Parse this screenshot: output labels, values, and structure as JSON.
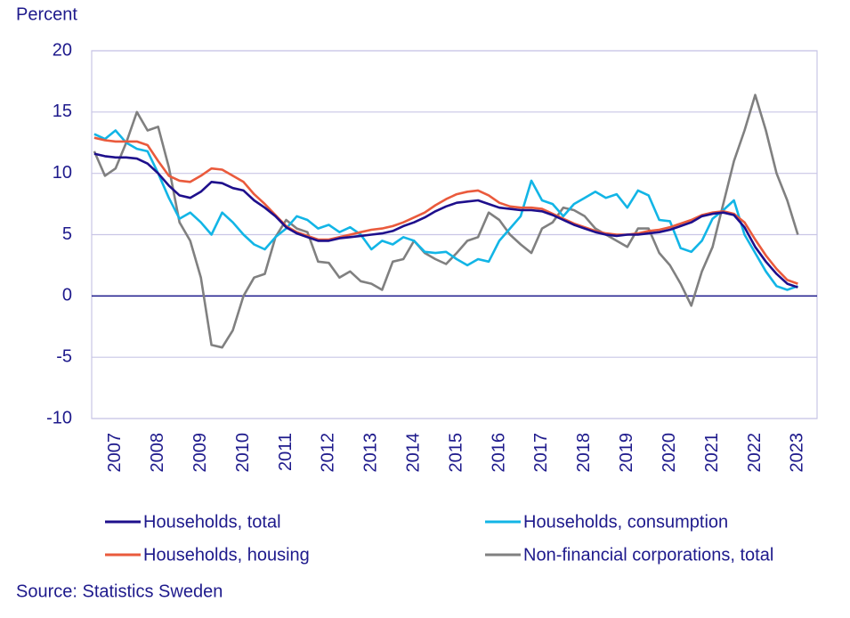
{
  "chart_data": {
    "type": "line",
    "y_label": "Percent",
    "source": "Source: Statistics Sweden",
    "x": [
      2007,
      2007.25,
      2007.5,
      2007.75,
      2008,
      2008.25,
      2008.5,
      2008.75,
      2009,
      2009.25,
      2009.5,
      2009.75,
      2010,
      2010.25,
      2010.5,
      2010.75,
      2011,
      2011.25,
      2011.5,
      2011.75,
      2012,
      2012.25,
      2012.5,
      2012.75,
      2013,
      2013.25,
      2013.5,
      2013.75,
      2014,
      2014.25,
      2014.5,
      2014.75,
      2015,
      2015.25,
      2015.5,
      2015.75,
      2016,
      2016.25,
      2016.5,
      2016.75,
      2017,
      2017.25,
      2017.5,
      2017.75,
      2018,
      2018.25,
      2018.5,
      2018.75,
      2019,
      2019.25,
      2019.5,
      2019.75,
      2020,
      2020.25,
      2020.5,
      2020.75,
      2021,
      2021.25,
      2021.5,
      2021.75,
      2022,
      2022.25,
      2022.5,
      2022.75,
      2023,
      2023.25,
      2023.5
    ],
    "xlim": [
      2006.94,
      2023.95
    ],
    "xticks": [
      {
        "value": 2007.5,
        "label": "2007"
      },
      {
        "value": 2008.5,
        "label": "2008"
      },
      {
        "value": 2009.5,
        "label": "2009"
      },
      {
        "value": 2010.5,
        "label": "2010"
      },
      {
        "value": 2011.5,
        "label": "2011"
      },
      {
        "value": 2012.5,
        "label": "2012"
      },
      {
        "value": 2013.5,
        "label": "2013"
      },
      {
        "value": 2014.5,
        "label": "2014"
      },
      {
        "value": 2015.5,
        "label": "2015"
      },
      {
        "value": 2016.5,
        "label": "2016"
      },
      {
        "value": 2017.5,
        "label": "2017"
      },
      {
        "value": 2018.5,
        "label": "2018"
      },
      {
        "value": 2019.5,
        "label": "2019"
      },
      {
        "value": 2020.5,
        "label": "2020"
      },
      {
        "value": 2021.5,
        "label": "2021"
      },
      {
        "value": 2022.5,
        "label": "2022"
      },
      {
        "value": 2023.5,
        "label": "2023"
      }
    ],
    "ylim": [
      -10,
      20
    ],
    "yticks": [
      -10,
      -5,
      0,
      5,
      10,
      15,
      20
    ],
    "grid": true,
    "series": [
      {
        "name": "Households, total",
        "color": "#1e0f8c",
        "values": [
          11.6,
          11.4,
          11.3,
          11.3,
          11.2,
          10.8,
          10.0,
          9.0,
          8.2,
          8.0,
          8.5,
          9.3,
          9.2,
          8.8,
          8.6,
          7.8,
          7.2,
          6.5,
          5.6,
          5.1,
          4.8,
          4.5,
          4.5,
          4.7,
          4.8,
          4.9,
          5.0,
          5.1,
          5.3,
          5.7,
          6.0,
          6.4,
          6.9,
          7.3,
          7.6,
          7.7,
          7.8,
          7.5,
          7.2,
          7.1,
          7.0,
          7.0,
          6.9,
          6.6,
          6.2,
          5.8,
          5.5,
          5.2,
          5.0,
          4.9,
          5.0,
          5.0,
          5.1,
          5.2,
          5.4,
          5.7,
          6.0,
          6.5,
          6.7,
          6.8,
          6.6,
          5.6,
          4.0,
          2.8,
          1.8,
          1.0,
          0.7
        ]
      },
      {
        "name": "Households, consumption",
        "color": "#12b5e6",
        "values": [
          13.2,
          12.8,
          13.5,
          12.5,
          12.0,
          11.8,
          10.0,
          8.0,
          6.3,
          6.8,
          6.0,
          5.0,
          6.8,
          6.0,
          5.0,
          4.2,
          3.8,
          4.8,
          5.5,
          6.5,
          6.2,
          5.5,
          5.8,
          5.2,
          5.6,
          5.0,
          3.8,
          4.5,
          4.2,
          4.8,
          4.5,
          3.6,
          3.5,
          3.6,
          3.0,
          2.5,
          3.0,
          2.8,
          4.5,
          5.5,
          6.5,
          9.4,
          7.8,
          7.5,
          6.5,
          7.5,
          8.0,
          8.5,
          8.0,
          8.3,
          7.2,
          8.6,
          8.2,
          6.2,
          6.1,
          3.9,
          3.6,
          4.5,
          6.3,
          7.0,
          7.8,
          5.0,
          3.5,
          2.0,
          0.8,
          0.5,
          0.8
        ]
      },
      {
        "name": "Households, housing",
        "color": "#ea5a3c",
        "values": [
          12.9,
          12.7,
          12.6,
          12.6,
          12.6,
          12.3,
          11.0,
          9.8,
          9.4,
          9.3,
          9.8,
          10.4,
          10.3,
          9.8,
          9.3,
          8.3,
          7.5,
          6.6,
          5.7,
          5.2,
          4.9,
          4.6,
          4.6,
          4.8,
          5.0,
          5.2,
          5.4,
          5.5,
          5.7,
          6.0,
          6.4,
          6.8,
          7.4,
          7.9,
          8.3,
          8.5,
          8.6,
          8.2,
          7.6,
          7.3,
          7.2,
          7.2,
          7.1,
          6.7,
          6.3,
          5.9,
          5.6,
          5.3,
          5.1,
          5.0,
          5.0,
          5.1,
          5.3,
          5.4,
          5.6,
          5.9,
          6.2,
          6.6,
          6.8,
          6.9,
          6.7,
          6.0,
          4.6,
          3.3,
          2.2,
          1.3,
          1.0
        ]
      },
      {
        "name": "Non-financial corporations, total",
        "color": "#808080",
        "values": [
          11.8,
          9.8,
          10.4,
          12.5,
          15.0,
          13.5,
          13.8,
          10.5,
          6.0,
          4.5,
          1.5,
          -4.0,
          -4.2,
          -2.8,
          0.0,
          1.5,
          1.8,
          4.8,
          6.2,
          5.5,
          5.2,
          2.8,
          2.7,
          1.5,
          2.0,
          1.2,
          1.0,
          0.5,
          2.8,
          3.0,
          4.5,
          3.5,
          3.0,
          2.6,
          3.5,
          4.5,
          4.8,
          6.8,
          6.2,
          5.0,
          4.2,
          3.5,
          5.5,
          6.0,
          7.2,
          7.0,
          6.5,
          5.5,
          5.0,
          4.5,
          4.0,
          5.5,
          5.5,
          3.5,
          2.5,
          1.0,
          -0.8,
          2.0,
          4.0,
          7.5,
          11.0,
          13.5,
          16.4,
          13.5,
          10.0,
          7.8,
          5.0
        ]
      }
    ]
  }
}
